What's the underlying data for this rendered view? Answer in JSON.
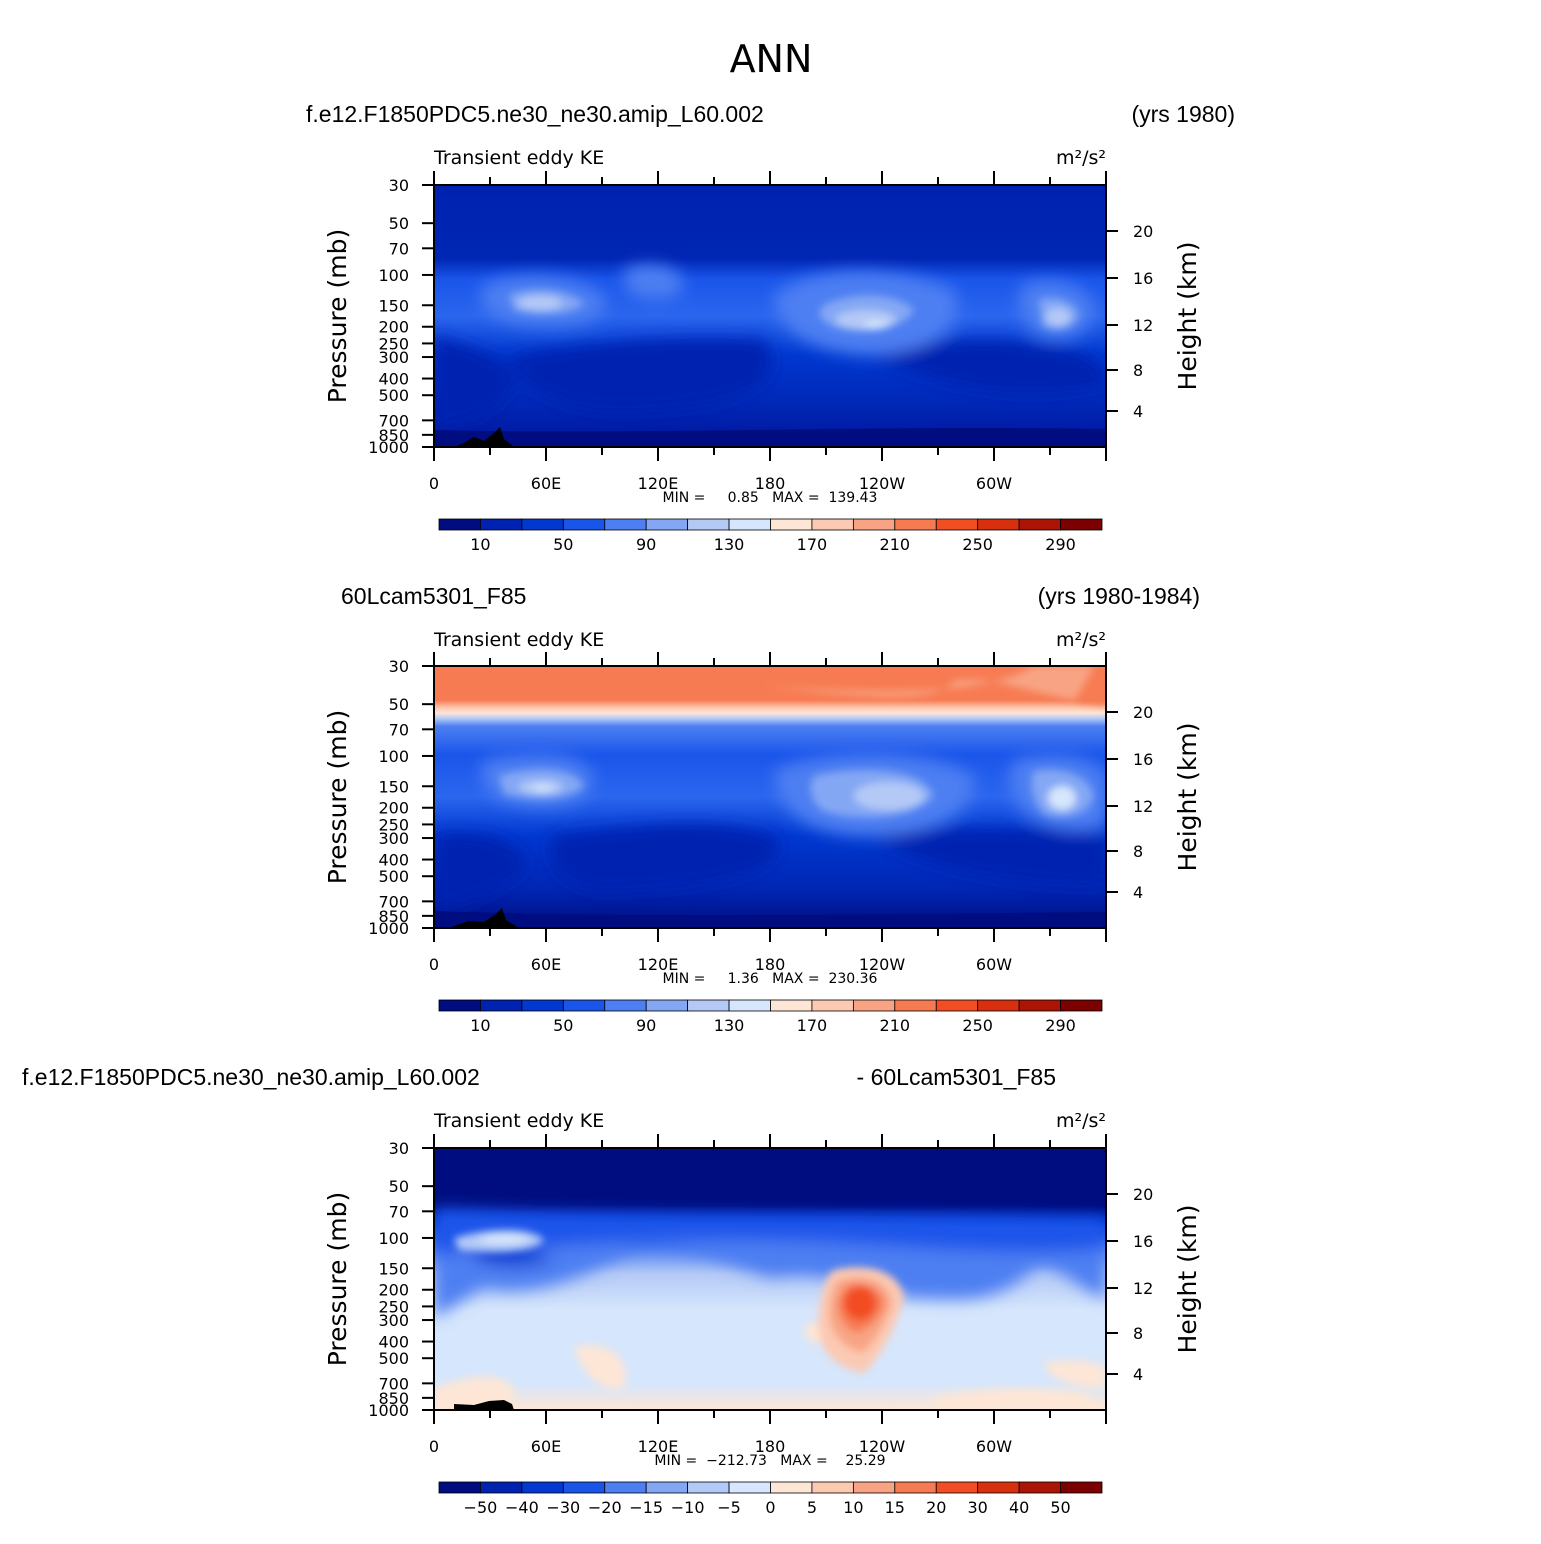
{
  "figure": {
    "title": "ANN"
  },
  "chart_data": [
    {
      "type": "heatmap",
      "case_title": "f.e12.F1850PDC5.ne30_ne30.amip_L60.002",
      "years": "(yrs 1980)",
      "field": "Transient eddy KE",
      "units": "m²/s²",
      "ylabel": "Pressure (mb)",
      "ylabel_right": "Height (km)",
      "x_ticks": [
        "0",
        "60E",
        "120E",
        "180",
        "120W",
        "60W"
      ],
      "y_ticks": [
        "30",
        "50",
        "70",
        "100",
        "150",
        "200",
        "250",
        "300",
        "400",
        "500",
        "700",
        "850",
        "1000"
      ],
      "height_ticks": [
        "20",
        "16",
        "12",
        "8",
        "4"
      ],
      "stats": "MIN =     0.85   MAX =  139.43",
      "min": 0.85,
      "max": 139.43,
      "colorbar_labels": [
        "10",
        "50",
        "90",
        "130",
        "170",
        "210",
        "250",
        "290"
      ],
      "colorbar_colors": [
        "#000d80",
        "#0022b0",
        "#0038d0",
        "#1a55ea",
        "#4d7ff2",
        "#84a7f4",
        "#b4c9f6",
        "#d6e6fc",
        "#fde6d6",
        "#fcc9b2",
        "#f8a484",
        "#f77b52",
        "#f24e24",
        "#d8300e",
        "#ac1505",
        "#7d0000"
      ],
      "features": [
        {
          "lon": 40,
          "p": 150,
          "value": 135
        },
        {
          "lon": 120,
          "p": 120,
          "value": 95
        },
        {
          "lon": 245,
          "p": 180,
          "value": 139
        },
        {
          "lon": 330,
          "p": 180,
          "value": 120
        }
      ]
    },
    {
      "type": "heatmap",
      "case_title": "60Lcam5301_F85",
      "years": "(yrs 1980-1984)",
      "field": "Transient eddy KE",
      "units": "m²/s²",
      "ylabel": "Pressure (mb)",
      "ylabel_right": "Height (km)",
      "x_ticks": [
        "0",
        "60E",
        "120E",
        "180",
        "120W",
        "60W"
      ],
      "y_ticks": [
        "30",
        "50",
        "70",
        "100",
        "150",
        "200",
        "250",
        "300",
        "400",
        "500",
        "700",
        "850",
        "1000"
      ],
      "height_ticks": [
        "20",
        "16",
        "12",
        "8",
        "4"
      ],
      "stats": "MIN =     1.36   MAX =  230.36",
      "min": 1.36,
      "max": 230.36,
      "colorbar_labels": [
        "10",
        "50",
        "90",
        "130",
        "170",
        "210",
        "250",
        "290"
      ],
      "colorbar_colors": [
        "#000d80",
        "#0022b0",
        "#0038d0",
        "#1a55ea",
        "#4d7ff2",
        "#84a7f4",
        "#b4c9f6",
        "#d6e6fc",
        "#fde6d6",
        "#fcc9b2",
        "#f8a484",
        "#f77b52",
        "#f24e24",
        "#d8300e",
        "#ac1505",
        "#7d0000"
      ],
      "features": [
        {
          "lon": 40,
          "p": 150,
          "value": 140
        },
        {
          "lon": 250,
          "p": 180,
          "value": 135
        },
        {
          "lon": 340,
          "p": 180,
          "value": 140
        },
        {
          "lon": 180,
          "p": 35,
          "value": 230
        }
      ]
    },
    {
      "type": "heatmap",
      "case_title": "f.e12.F1850PDC5.ne30_ne30.amip_L60.002",
      "years": "- 60Lcam5301_F85",
      "field": "Transient eddy KE",
      "units": "m²/s²",
      "ylabel": "Pressure (mb)",
      "ylabel_right": "Height (km)",
      "x_ticks": [
        "0",
        "60E",
        "120E",
        "180",
        "120W",
        "60W"
      ],
      "y_ticks": [
        "30",
        "50",
        "70",
        "100",
        "150",
        "200",
        "250",
        "300",
        "400",
        "500",
        "700",
        "850",
        "1000"
      ],
      "height_ticks": [
        "20",
        "16",
        "12",
        "8",
        "4"
      ],
      "stats": "MIN =  −212.73   MAX =    25.29",
      "min": -212.73,
      "max": 25.29,
      "colorbar_labels": [
        "−50",
        "−40",
        "−30",
        "−20",
        "−15",
        "−10",
        "−5",
        "0",
        "5",
        "10",
        "15",
        "20",
        "30",
        "40",
        "50"
      ],
      "colorbar_colors": [
        "#000d80",
        "#0022b0",
        "#0038d0",
        "#1a55ea",
        "#4d7ff2",
        "#84a7f4",
        "#b4c9f6",
        "#d6e6fc",
        "#fde6d6",
        "#fcc9b2",
        "#f8a484",
        "#f77b52",
        "#f24e24",
        "#d8300e",
        "#ac1505",
        "#7d0000"
      ],
      "features": [
        {
          "lon": 227,
          "p": 230,
          "value": 25
        },
        {
          "lon": 180,
          "p": 35,
          "value": -212
        }
      ]
    }
  ]
}
